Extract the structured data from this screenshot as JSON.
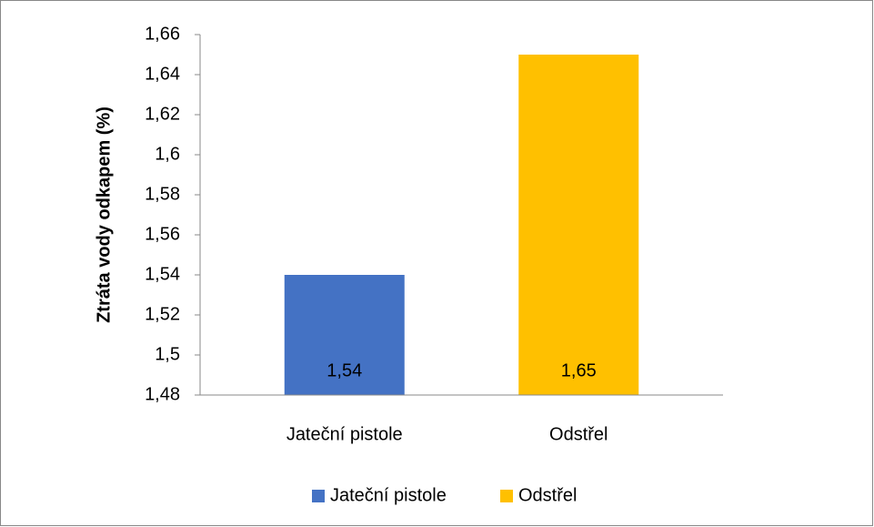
{
  "chart_data": {
    "type": "bar",
    "y_axis_label": "Ztráta vody odkapem (%)",
    "categories": [
      "Jateční pistole",
      "Odstřel"
    ],
    "values": [
      1.54,
      1.65
    ],
    "value_labels": [
      "1,54",
      "1,65"
    ],
    "colors": [
      "#4472c4",
      "#ffc000"
    ],
    "ylim": [
      1.48,
      1.66
    ],
    "yticks": [
      {
        "value": 1.48,
        "label": "1,48"
      },
      {
        "value": 1.5,
        "label": "1,5"
      },
      {
        "value": 1.52,
        "label": "1,52"
      },
      {
        "value": 1.54,
        "label": "1,54"
      },
      {
        "value": 1.56,
        "label": "1,56"
      },
      {
        "value": 1.58,
        "label": "1,58"
      },
      {
        "value": 1.6,
        "label": "1,6"
      },
      {
        "value": 1.62,
        "label": "1,62"
      },
      {
        "value": 1.64,
        "label": "1,64"
      },
      {
        "value": 1.66,
        "label": "1,66"
      }
    ],
    "legend": "bottom"
  }
}
